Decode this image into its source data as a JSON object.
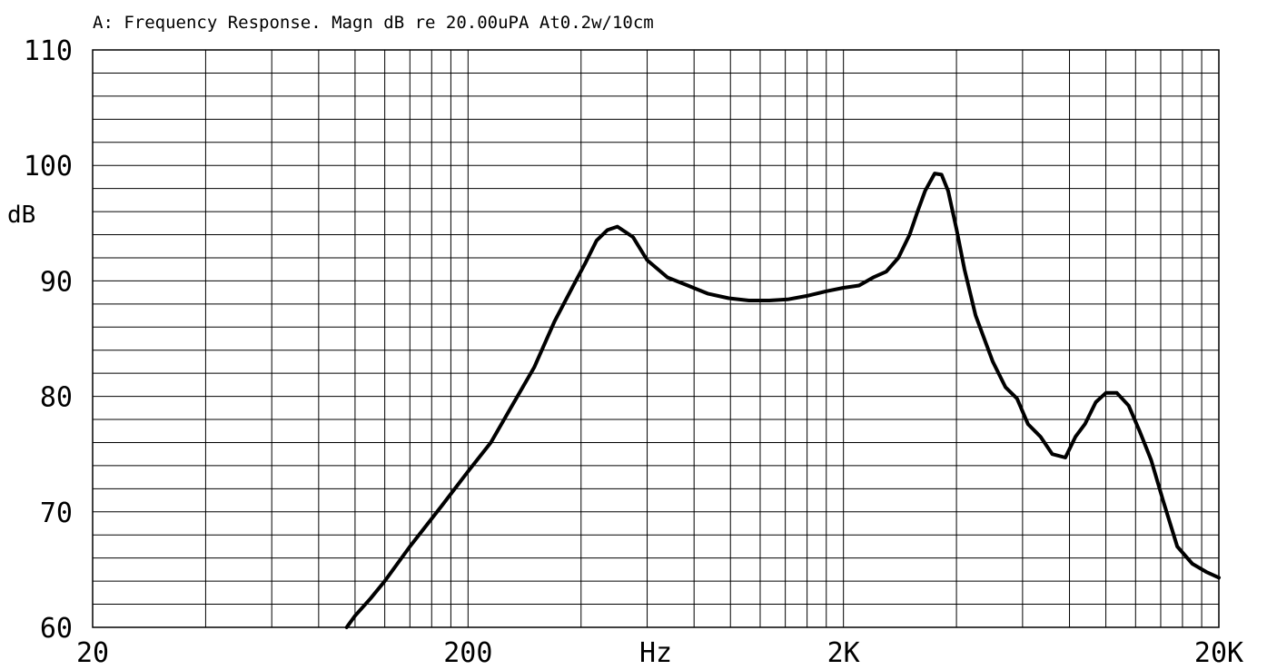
{
  "chart_data": {
    "type": "line",
    "title": "A: Frequency Response. Magn dB re 20.00uPA  At0.2w/10cm",
    "xlabel": "Hz",
    "ylabel": "dB",
    "x_scale": "log",
    "xlim": [
      20,
      20000
    ],
    "ylim": [
      60,
      110
    ],
    "grid": true,
    "x_tick_labels": [
      {
        "value": 20,
        "label": "20"
      },
      {
        "value": 200,
        "label": "200"
      },
      {
        "value": 2000,
        "label": "2K"
      },
      {
        "value": 20000,
        "label": "20K"
      }
    ],
    "y_tick_labels": [
      {
        "value": 60,
        "label": "60"
      },
      {
        "value": 70,
        "label": "70"
      },
      {
        "value": 80,
        "label": "80"
      },
      {
        "value": 90,
        "label": "90"
      },
      {
        "value": 100,
        "label": "100"
      },
      {
        "value": 110,
        "label": "110"
      }
    ],
    "series": [
      {
        "color": "#000000",
        "x": [
          95,
          100,
          110,
          120,
          140,
          170,
          200,
          230,
          260,
          300,
          340,
          380,
          410,
          440,
          470,
          500,
          550,
          600,
          680,
          770,
          870,
          990,
          1120,
          1270,
          1420,
          1600,
          1800,
          2000,
          2200,
          2400,
          2600,
          2800,
          3000,
          3150,
          3300,
          3500,
          3650,
          3800,
          4000,
          4200,
          4500,
          5000,
          5400,
          5800,
          6200,
          6700,
          7200,
          7800,
          8300,
          8800,
          9400,
          10000,
          10700,
          11500,
          12300,
          13200,
          14200,
          15500,
          17000,
          18500,
          20000
        ],
        "y": [
          60,
          61,
          62.5,
          64,
          67,
          70.5,
          73.5,
          76,
          79,
          82.5,
          86.5,
          89.5,
          91.5,
          93.5,
          94.4,
          94.7,
          93.8,
          91.8,
          90.3,
          89.6,
          88.9,
          88.5,
          88.3,
          88.3,
          88.4,
          88.7,
          89.1,
          89.4,
          89.6,
          90.3,
          90.8,
          92,
          94,
          96,
          97.8,
          99.3,
          99.2,
          97.8,
          94.5,
          91,
          87,
          83,
          80.8,
          79.8,
          77.6,
          76.5,
          75,
          74.7,
          76.5,
          77.6,
          79.5,
          80.3,
          80.3,
          79.2,
          77,
          74.5,
          71,
          67,
          65.5,
          64.8,
          64.3
        ]
      }
    ]
  }
}
